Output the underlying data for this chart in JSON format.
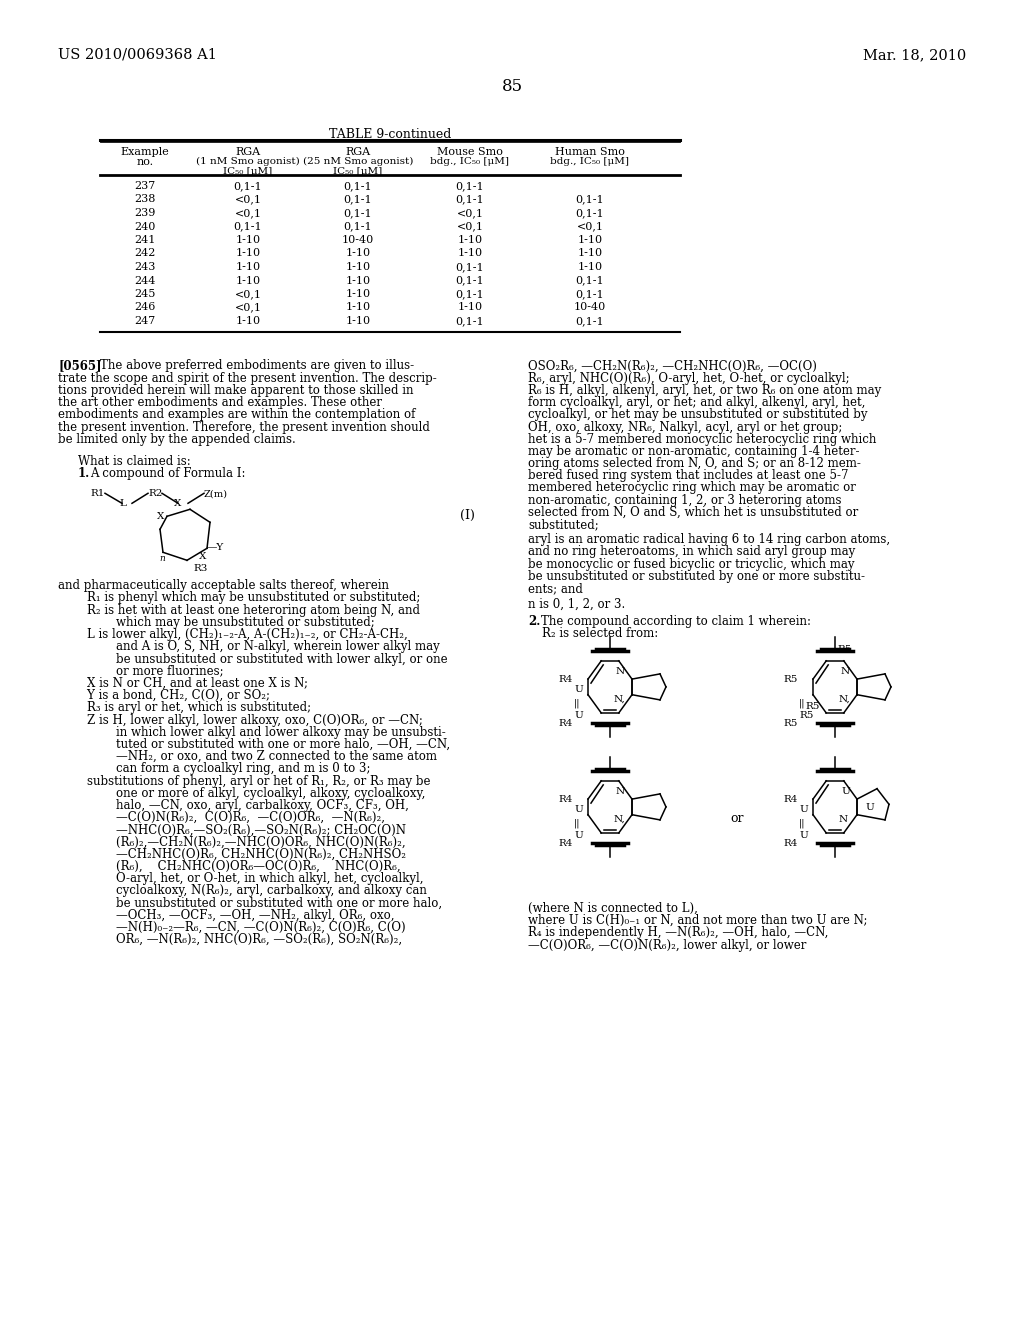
{
  "patent_number": "US 2010/0069368 A1",
  "date": "Mar. 18, 2010",
  "page_number": "85",
  "table_title": "TABLE 9-continued",
  "table_data": [
    [
      "237",
      "0,1-1",
      "0,1-1",
      "0,1-1",
      ""
    ],
    [
      "238",
      "<0,1",
      "0,1-1",
      "0,1-1",
      "0,1-1"
    ],
    [
      "239",
      "<0,1",
      "0,1-1",
      "<0,1",
      "0,1-1"
    ],
    [
      "240",
      "0,1-1",
      "0,1-1",
      "<0,1",
      "<0,1"
    ],
    [
      "241",
      "1-10",
      "10-40",
      "1-10",
      "1-10"
    ],
    [
      "242",
      "1-10",
      "1-10",
      "1-10",
      "1-10"
    ],
    [
      "243",
      "1-10",
      "1-10",
      "0,1-1",
      "1-10"
    ],
    [
      "244",
      "1-10",
      "1-10",
      "0,1-1",
      "0,1-1"
    ],
    [
      "245",
      "<0,1",
      "1-10",
      "0,1-1",
      "0,1-1"
    ],
    [
      "246",
      "<0,1",
      "1-10",
      "1-10",
      "10-40"
    ],
    [
      "247",
      "1-10",
      "1-10",
      "0,1-1",
      "0,1-1"
    ]
  ],
  "background_color": "#ffffff"
}
